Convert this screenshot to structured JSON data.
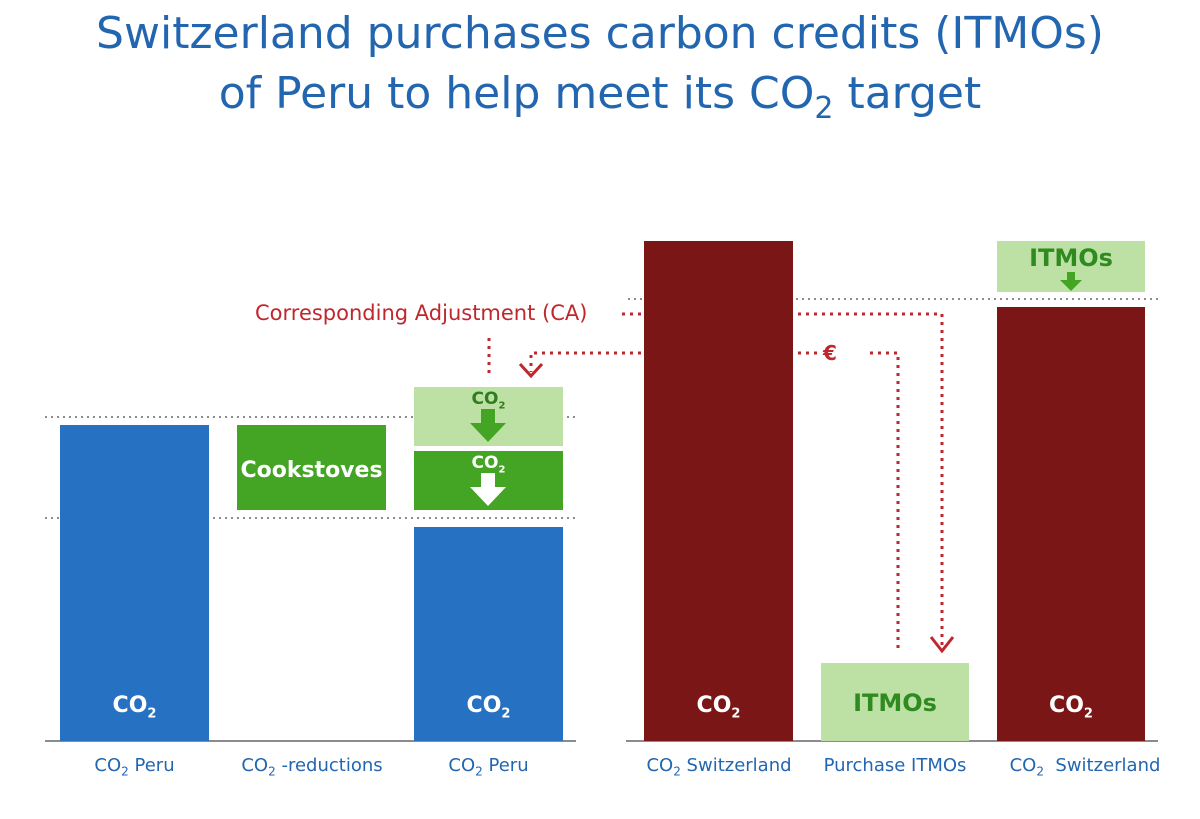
{
  "title": {
    "line1": "Switzerland purchases carbon credits (ITMOs)",
    "line2_prefix": "of Peru to help meet its CO",
    "line2_sub": "2",
    "line2_suffix": " target"
  },
  "bar_label": {
    "co": "CO",
    "sub": "2"
  },
  "green_boxes": {
    "cookstoves": "Cookstoves",
    "co_prefix": "CO",
    "co_sub": "2",
    "itmos": "ITMOs"
  },
  "annotations": {
    "corresponding_adjustment": "Corresponding Adjustment (CA)",
    "euro": "€"
  },
  "axis_labels": {
    "co2_peru_prefix": "CO",
    "co2_peru_sub": "2",
    "co2_peru_suffix": " Peru",
    "co2_reductions_suffix": " -reductions",
    "co2_switzerland_suffix": " Switzerland",
    "co2_switzerland_suffix2": "  Switzerland",
    "purchase_itmos": "Purchase ITMOs"
  },
  "colors": {
    "blue": "#2771c2",
    "maroon": "#7b1616",
    "green": "#44a424",
    "light_green": "#bde0a4",
    "red_annotation": "#c0272d",
    "title_blue": "#2366b0"
  }
}
